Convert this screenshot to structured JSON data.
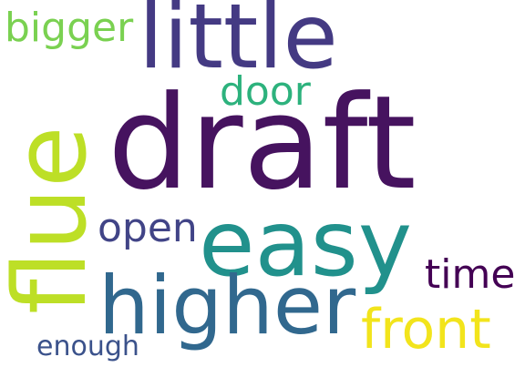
{
  "words": {
    "draft": {
      "text": "draft",
      "color": "#46135f"
    },
    "little": {
      "text": "little",
      "color": "#443a83"
    },
    "easy": {
      "text": "easy",
      "color": "#21918c"
    },
    "higher": {
      "text": "higher",
      "color": "#31688e"
    },
    "flue": {
      "text": "flue",
      "color": "#bddf26"
    },
    "front": {
      "text": "front",
      "color": "#f2e41c"
    },
    "bigger": {
      "text": "bigger",
      "color": "#7ad151"
    },
    "door": {
      "text": "door",
      "color": "#2db27d"
    },
    "open": {
      "text": "open",
      "color": "#414487"
    },
    "time": {
      "text": "time",
      "color": "#440154"
    },
    "enough": {
      "text": "enough",
      "color": "#3b528b"
    }
  }
}
